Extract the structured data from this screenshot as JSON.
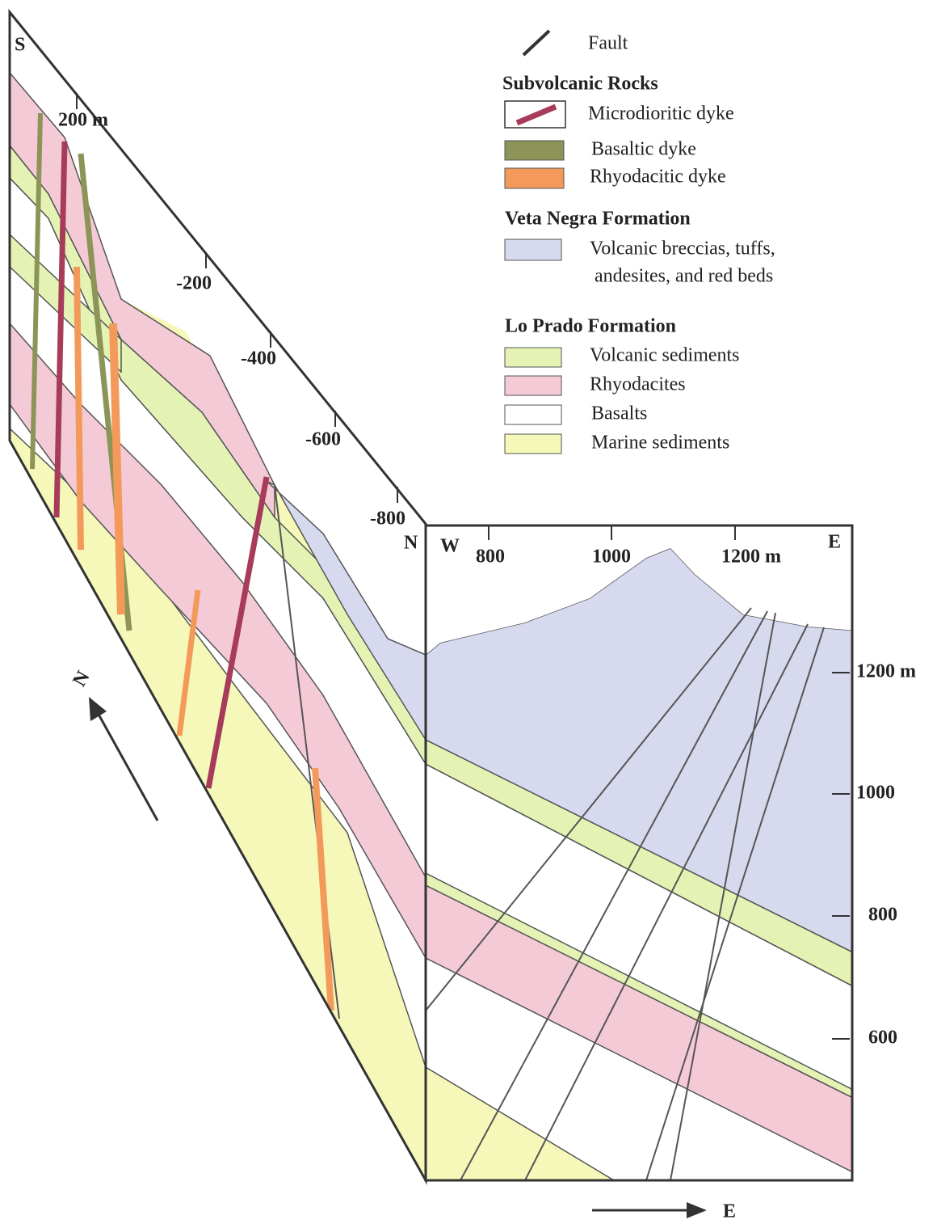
{
  "legend": {
    "fault": "Fault",
    "groups": [
      {
        "title": "Subvolcanic Rocks",
        "items": [
          {
            "label": "Microdioritic dyke"
          },
          {
            "label": "Basaltic dyke"
          },
          {
            "label": "Rhyodacitic dyke"
          }
        ]
      },
      {
        "title": "Veta Negra Formation",
        "items": [
          {
            "label": "Volcanic breccias, tuffs,",
            "label_line2": "andesites, and red beds"
          }
        ]
      },
      {
        "title": "Lo Prado Formation",
        "items": [
          {
            "label": "Volcanic  sediments"
          },
          {
            "label": "Rhyodacites"
          },
          {
            "label": "Basalts"
          },
          {
            "label": "Marine sediments"
          }
        ]
      }
    ]
  },
  "left_section": {
    "south": "S",
    "north": "N",
    "ticks": [
      "200 m",
      "-200",
      "-400",
      "-600",
      "-800"
    ]
  },
  "right_section": {
    "west": "W",
    "east": "E",
    "x_ticks": [
      "800",
      "1000",
      "1200 m"
    ],
    "elevation_ticks": [
      "1200 m",
      "1000",
      "800",
      "600"
    ]
  },
  "arrows": {
    "north": "N",
    "east": "E"
  }
}
